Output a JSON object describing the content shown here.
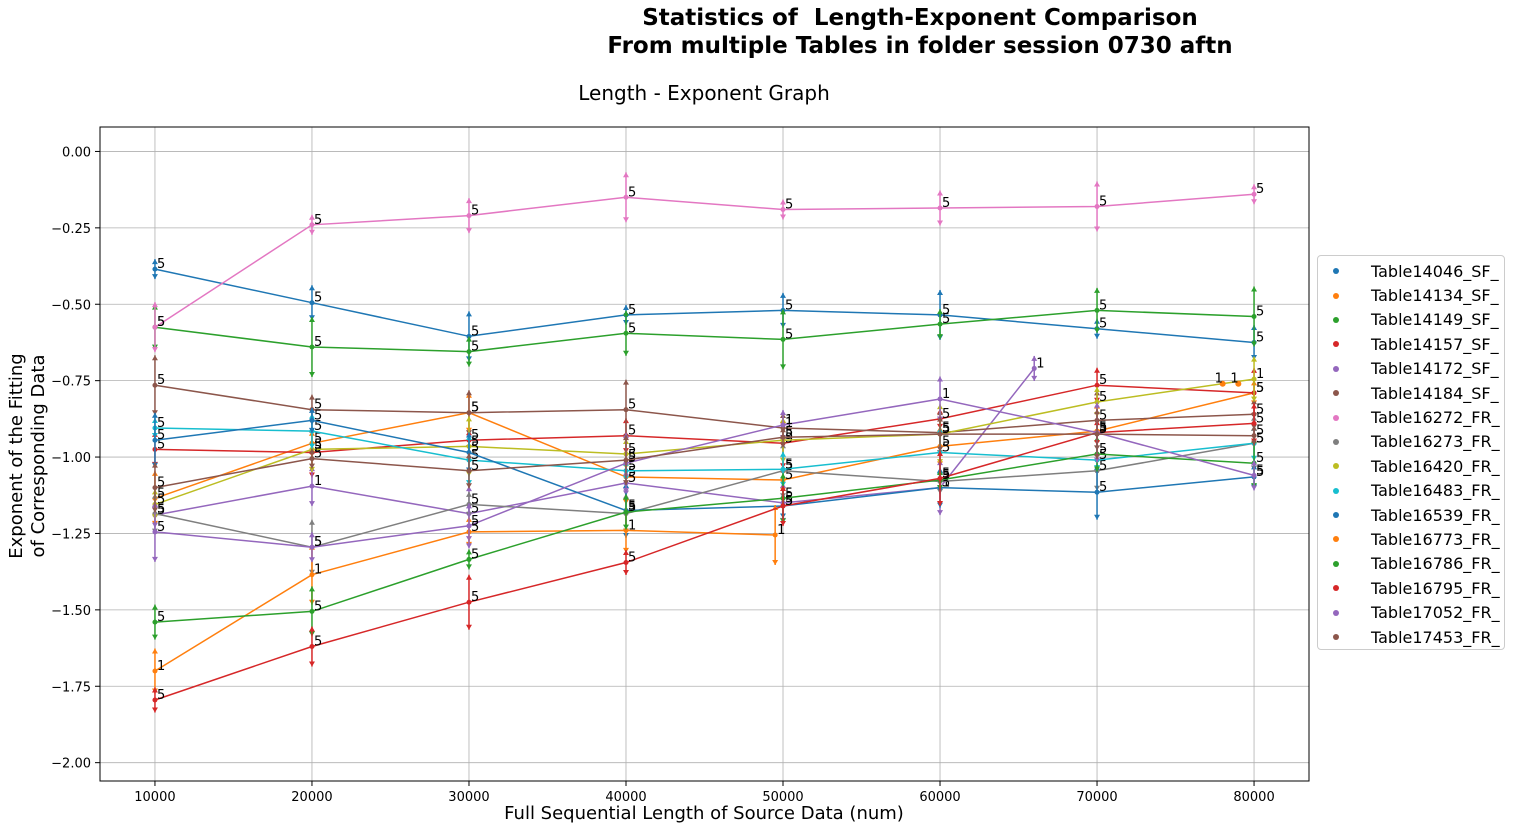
{
  "suptitle": {
    "line1": "Statistics of  Length-Exponent Comparison",
    "line2": "From multiple Tables in folder session 0730 aftn"
  },
  "chart_data": {
    "type": "line",
    "title": "Length - Exponent Graph",
    "xlabel": "Full Sequential Length of Source Data (num)",
    "ylabel_line1": "Exponent of the Fitting",
    "ylabel_line2": "of Corresponding Data",
    "xlim": [
      6500,
      83500
    ],
    "ylim": [
      -2.06,
      0.08
    ],
    "xticks": [
      10000,
      20000,
      30000,
      40000,
      50000,
      60000,
      70000,
      80000
    ],
    "yticks": [
      0.0,
      -0.25,
      -0.5,
      -0.75,
      -1.0,
      -1.25,
      -1.5,
      -1.75,
      -2.0
    ],
    "ytick_labels": [
      "0.00",
      "−0.25",
      "−0.50",
      "−0.75",
      "−1.00",
      "−1.25",
      "−1.50",
      "−1.75",
      "−2.00"
    ],
    "grid": true,
    "legend_position": "right, outside plot",
    "series": [
      {
        "name": "Table14046_SF_",
        "color": "#1f77b4",
        "x": [
          10000,
          20000,
          30000,
          40000,
          50000,
          60000,
          70000,
          80000
        ],
        "y": [
          -0.385,
          -0.495,
          -0.605,
          -0.535,
          -0.52,
          -0.535,
          -0.58,
          -0.625
        ],
        "labels": [
          "5",
          "5",
          "5",
          "5",
          "5",
          "5",
          "5",
          "5"
        ]
      },
      {
        "name": "Table14134_SF_",
        "color": "#ff7f0e",
        "x": [
          10000,
          20000,
          30000,
          40000,
          50000,
          60000,
          70000,
          80000
        ],
        "y": [
          -1.135,
          -0.955,
          -0.855,
          -1.065,
          -1.075,
          -0.965,
          -0.915,
          -0.79
        ],
        "labels": [
          "5",
          "5",
          "5",
          "5",
          "5",
          "5",
          "5",
          "5"
        ]
      },
      {
        "name": "Table14149_SF_",
        "color": "#2ca02c",
        "x": [
          10000,
          20000,
          30000,
          40000,
          50000,
          60000,
          70000,
          80000
        ],
        "y": [
          -0.575,
          -0.64,
          -0.655,
          -0.595,
          -0.615,
          -0.565,
          -0.52,
          -0.54
        ],
        "labels": [
          "5",
          "5",
          "5",
          "5",
          "5",
          "5",
          "5",
          "5"
        ]
      },
      {
        "name": "Table14157_SF_",
        "color": "#d62728",
        "x": [
          10000,
          20000,
          30000,
          40000,
          50000,
          60000,
          70000,
          80000
        ],
        "y": [
          -0.975,
          -0.985,
          -0.945,
          -0.93,
          -0.955,
          -0.875,
          -0.765,
          -0.79
        ],
        "labels": [
          "5",
          "5",
          "5",
          "5",
          "5",
          "5",
          "5",
          "5"
        ]
      },
      {
        "name": "Table14172_SF_",
        "color": "#9467bd",
        "x": [
          10000,
          20000,
          30000,
          40000,
          50000,
          60000,
          66000
        ],
        "y": [
          -1.19,
          -1.095,
          -1.185,
          -1.085,
          -1.15,
          -1.1,
          -0.71
        ],
        "labels": [
          "5",
          "1",
          "5",
          "5",
          "5",
          "1",
          "1"
        ]
      },
      {
        "name": "Table14184_SF_",
        "color": "#8c564b",
        "x": [
          10000,
          20000,
          30000,
          40000,
          50000,
          60000,
          70000,
          80000
        ],
        "y": [
          -0.765,
          -0.845,
          -0.855,
          -0.845,
          -0.905,
          -0.92,
          -0.88,
          -0.86
        ],
        "labels": [
          "5",
          "5",
          "5",
          "5",
          "1",
          "5",
          "5",
          "5"
        ]
      },
      {
        "name": "Table16272_FR_",
        "color": "#e377c2",
        "x": [
          10000,
          20000,
          30000,
          40000,
          50000,
          60000,
          70000,
          80000
        ],
        "y": [
          -0.575,
          -0.24,
          -0.21,
          -0.15,
          -0.19,
          -0.185,
          -0.18,
          -0.14
        ],
        "labels": [
          "5",
          "5",
          "5",
          "5",
          "5",
          "5",
          "5",
          "5"
        ]
      },
      {
        "name": "Table16273_FR_",
        "color": "#7f7f7f",
        "x": [
          10000,
          20000,
          30000,
          40000,
          50000,
          60000,
          70000,
          80000
        ],
        "y": [
          -1.185,
          -1.295,
          -1.155,
          -1.185,
          -1.045,
          -1.08,
          -1.045,
          -0.955
        ],
        "labels": [
          "5",
          "5",
          "5",
          "5",
          "5",
          "5",
          "5",
          "5"
        ]
      },
      {
        "name": "Table16420_FR_",
        "color": "#bcbd22",
        "x": [
          10000,
          20000,
          30000,
          40000,
          50000,
          60000,
          70000,
          80000
        ],
        "y": [
          -1.155,
          -0.975,
          -0.965,
          -0.99,
          -0.945,
          -0.925,
          -0.82,
          -0.745
        ],
        "labels": [
          "5",
          "5",
          "5",
          "5",
          "5",
          "5",
          "5",
          "1"
        ]
      },
      {
        "name": "Table16483_FR_",
        "color": "#17becf",
        "x": [
          10000,
          20000,
          30000,
          40000,
          50000,
          60000,
          70000,
          80000
        ],
        "y": [
          -0.905,
          -0.915,
          -1.01,
          -1.045,
          -1.04,
          -0.985,
          -1.01,
          -0.955
        ],
        "labels": [
          "5",
          "5",
          "5",
          "5",
          "5",
          "5",
          "5",
          "5"
        ]
      },
      {
        "name": "Table16539_FR_",
        "color": "#1f77b4",
        "x": [
          10000,
          20000,
          30000,
          40000,
          50000,
          60000,
          70000,
          80000
        ],
        "y": [
          -0.945,
          -0.88,
          -0.985,
          -1.175,
          -1.16,
          -1.1,
          -1.115,
          -1.065
        ],
        "labels": [
          "5",
          "5",
          "5",
          "5",
          "5",
          "5",
          "5",
          "5"
        ]
      },
      {
        "name": "Table16773_FR_",
        "color": "#ff7f0e",
        "x": [
          10000,
          20000,
          30000,
          40000,
          49500
        ],
        "y": [
          -1.7,
          -1.385,
          -1.245,
          -1.24,
          -1.255
        ],
        "labels": [
          "1",
          "1",
          "5",
          "1",
          "1"
        ]
      },
      {
        "name": "Table16786_FR_",
        "color": "#2ca02c",
        "x": [
          10000,
          20000,
          30000,
          40000,
          50000,
          60000,
          70000,
          80000
        ],
        "y": [
          -1.54,
          -1.505,
          -1.335,
          -1.18,
          -1.135,
          -1.075,
          -0.99,
          -1.02
        ],
        "labels": [
          "5",
          "5",
          "5",
          "5",
          "5",
          "5",
          "5",
          "5"
        ]
      },
      {
        "name": "Table16795_FR_",
        "color": "#d62728",
        "x": [
          10000,
          20000,
          30000,
          40000,
          50000,
          60000,
          70000,
          80000
        ],
        "y": [
          -1.795,
          -1.62,
          -1.475,
          -1.345,
          -1.16,
          -1.07,
          -0.92,
          -0.89
        ],
        "labels": [
          "5",
          "5",
          "5",
          "5",
          "5",
          "5",
          "5",
          "5"
        ]
      },
      {
        "name": "Table17052_FR_",
        "color": "#9467bd",
        "x": [
          10000,
          20000,
          30000,
          40000,
          50000,
          60000,
          70000,
          80000
        ],
        "y": [
          -1.245,
          -1.295,
          -1.225,
          -1.02,
          -0.895,
          -0.81,
          -0.92,
          -1.06
        ],
        "labels": [
          "5",
          "5",
          "5",
          "5",
          "1",
          "1",
          "5",
          "5"
        ]
      },
      {
        "name": "Table17453_FR_",
        "color": "#8c564b",
        "x": [
          10000,
          20000,
          30000,
          40000,
          50000,
          60000,
          70000,
          80000
        ],
        "y": [
          -1.1,
          -1.005,
          -1.045,
          -1.01,
          -0.935,
          -0.925,
          -0.925,
          -0.93
        ],
        "labels": [
          "5",
          "5",
          "5",
          "5",
          "5",
          "5",
          "5",
          "5"
        ]
      }
    ],
    "extra_points": [
      {
        "x": 78000,
        "y": -0.76,
        "label": "1",
        "color": "#ff7f0e"
      },
      {
        "x": 79000,
        "y": -0.76,
        "label": "1",
        "color": "#ff7f0e"
      }
    ]
  }
}
